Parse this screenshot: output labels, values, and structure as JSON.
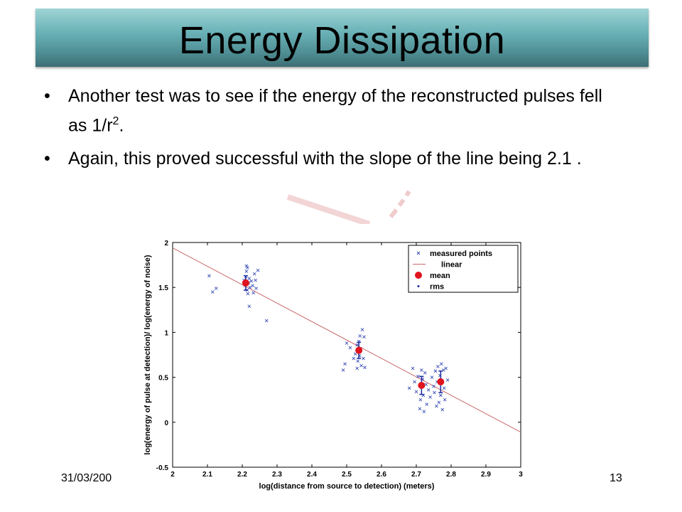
{
  "slide": {
    "title": "Energy Dissipation",
    "bullet1_main": "Another test was to see if the energy of the reconstructed pulses fell as 1/r",
    "bullet1_sup": "2",
    "bullet1_end": ".",
    "bullet2": "Again, this proved successful with the slope of the line being 2.1 .",
    "bullet_glyph": "•",
    "footer_date": "31/03/200",
    "slide_number": "13"
  },
  "chart_data": {
    "type": "scatter",
    "xlabel": "log(distance from source to detection) (meters)",
    "ylabel": "log(energy of pulse at detection)/ log(energy of noise)",
    "xlim": [
      2,
      3
    ],
    "ylim": [
      -0.5,
      2
    ],
    "x_ticks": [
      "2",
      "2.1",
      "2.2",
      "2.3",
      "2.4",
      "2.5",
      "2.6",
      "2.7",
      "2.8",
      "2.9",
      "3"
    ],
    "y_ticks": [
      "-0.5",
      "0",
      "0.5",
      "1",
      "1.5",
      "2"
    ],
    "legend": {
      "position": "top-right",
      "entries": [
        "measured points",
        "linear",
        "mean",
        "rms"
      ]
    },
    "colors": {
      "measured": "#3a4fb8",
      "linear": "#c96a6a",
      "mean": "#e0141e",
      "rms": "#1a2aa0"
    },
    "linear": {
      "x": [
        2,
        3
      ],
      "y": [
        1.94,
        -0.11
      ]
    },
    "means": [
      {
        "x": 2.21,
        "y": 1.55,
        "rms": 0.08
      },
      {
        "x": 2.535,
        "y": 0.8,
        "rms": 0.09
      },
      {
        "x": 2.715,
        "y": 0.41,
        "rms": 0.1
      },
      {
        "x": 2.77,
        "y": 0.45,
        "rms": 0.12
      }
    ],
    "measured_points": [
      [
        2.105,
        1.63
      ],
      [
        2.115,
        1.45
      ],
      [
        2.125,
        1.49
      ],
      [
        2.205,
        1.58
      ],
      [
        2.21,
        1.62
      ],
      [
        2.215,
        1.72
      ],
      [
        2.212,
        1.68
      ],
      [
        2.208,
        1.52
      ],
      [
        2.214,
        1.47
      ],
      [
        2.218,
        1.55
      ],
      [
        2.22,
        1.6
      ],
      [
        2.222,
        1.5
      ],
      [
        2.226,
        1.57
      ],
      [
        2.23,
        1.52
      ],
      [
        2.235,
        1.65
      ],
      [
        2.232,
        1.44
      ],
      [
        2.238,
        1.58
      ],
      [
        2.24,
        1.49
      ],
      [
        2.245,
        1.69
      ],
      [
        2.22,
        1.29
      ],
      [
        2.27,
        1.13
      ],
      [
        2.212,
        1.74
      ],
      [
        2.216,
        1.43
      ],
      [
        2.49,
        0.58
      ],
      [
        2.495,
        0.65
      ],
      [
        2.5,
        0.88
      ],
      [
        2.51,
        0.83
      ],
      [
        2.52,
        0.71
      ],
      [
        2.525,
        0.76
      ],
      [
        2.53,
        0.86
      ],
      [
        2.532,
        0.68
      ],
      [
        2.535,
        0.9
      ],
      [
        2.537,
        0.74
      ],
      [
        2.54,
        0.82
      ],
      [
        2.542,
        0.63
      ],
      [
        2.545,
        1.03
      ],
      [
        2.548,
        0.71
      ],
      [
        2.55,
        0.95
      ],
      [
        2.552,
        0.61
      ],
      [
        2.538,
        0.96
      ],
      [
        2.53,
        0.6
      ],
      [
        2.68,
        0.38
      ],
      [
        2.69,
        0.6
      ],
      [
        2.695,
        0.45
      ],
      [
        2.7,
        0.34
      ],
      [
        2.705,
        0.51
      ],
      [
        2.71,
        0.15
      ],
      [
        2.712,
        0.25
      ],
      [
        2.715,
        0.58
      ],
      [
        2.718,
        0.48
      ],
      [
        2.72,
        0.3
      ],
      [
        2.722,
        0.12
      ],
      [
        2.725,
        0.55
      ],
      [
        2.728,
        0.42
      ],
      [
        2.73,
        0.2
      ],
      [
        2.735,
        0.36
      ],
      [
        2.74,
        0.28
      ],
      [
        2.745,
        0.5
      ],
      [
        2.75,
        0.4
      ],
      [
        2.752,
        0.33
      ],
      [
        2.755,
        0.57
      ],
      [
        2.758,
        0.18
      ],
      [
        2.76,
        0.45
      ],
      [
        2.762,
        0.62
      ],
      [
        2.765,
        0.22
      ],
      [
        2.768,
        0.52
      ],
      [
        2.77,
        0.3
      ],
      [
        2.772,
        0.65
      ],
      [
        2.775,
        0.14
      ],
      [
        2.778,
        0.58
      ],
      [
        2.78,
        0.38
      ],
      [
        2.782,
        0.25
      ],
      [
        2.785,
        0.6
      ],
      [
        2.79,
        0.47
      ]
    ]
  }
}
